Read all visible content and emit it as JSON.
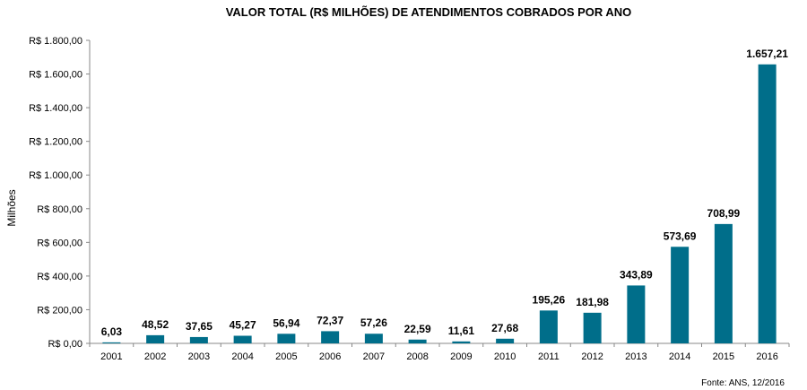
{
  "chart_data": {
    "type": "bar",
    "title": "VALOR TOTAL (R$ MILHÕES) DE ATENDIMENTOS COBRADOS POR ANO",
    "xlabel": "",
    "ylabel": "Milhões",
    "ylim": [
      0,
      1800
    ],
    "y_ticks": [
      0,
      200,
      400,
      600,
      800,
      1000,
      1200,
      1400,
      1600,
      1800
    ],
    "y_tick_labels": [
      "R$ 0,00",
      "R$ 200,00",
      "R$ 400,00",
      "R$ 600,00",
      "R$ 800,00",
      "R$ 1.000,00",
      "R$ 1.200,00",
      "R$ 1.400,00",
      "R$ 1.600,00",
      "R$ 1.800,00"
    ],
    "categories": [
      "2001",
      "2002",
      "2003",
      "2004",
      "2005",
      "2006",
      "2007",
      "2008",
      "2009",
      "2010",
      "2011",
      "2012",
      "2013",
      "2014",
      "2015",
      "2016"
    ],
    "values": [
      6.03,
      48.52,
      37.65,
      45.27,
      56.94,
      72.37,
      57.26,
      22.59,
      11.61,
      27.68,
      195.26,
      181.98,
      343.89,
      573.69,
      708.99,
      1657.21
    ],
    "value_labels": [
      "6,03",
      "48,52",
      "37,65",
      "45,27",
      "56,94",
      "72,37",
      "57,26",
      "22,59",
      "11,61",
      "27,68",
      "195,26",
      "181,98",
      "343,89",
      "573,69",
      "708,99",
      "1.657,21"
    ],
    "bar_color": "#006e8a",
    "grid": false,
    "legend": "none"
  },
  "footer": {
    "source": "Fonte: ANS, 12/2016"
  }
}
